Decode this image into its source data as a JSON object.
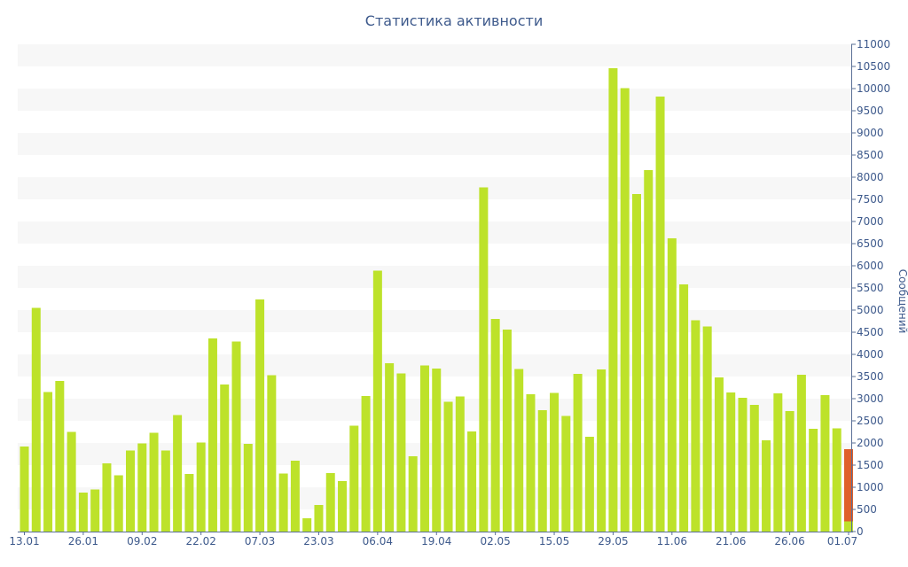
{
  "chart_data": {
    "type": "bar",
    "title": "Статистика активности",
    "xlabel": "",
    "ylabel": "Сообщений",
    "y_axis_position": "right",
    "ylim": [
      0,
      11000
    ],
    "y_ticks": [
      0,
      500,
      1000,
      1500,
      2000,
      2500,
      3000,
      3500,
      4000,
      4500,
      5000,
      5500,
      6000,
      6500,
      7000,
      7500,
      8000,
      8500,
      9000,
      9500,
      10000,
      10500,
      11000
    ],
    "x_tick_labels": [
      {
        "index": 0,
        "label": "13.01"
      },
      {
        "index": 5,
        "label": "26.01"
      },
      {
        "index": 10,
        "label": "09.02"
      },
      {
        "index": 15,
        "label": "22.02"
      },
      {
        "index": 20,
        "label": "07.03"
      },
      {
        "index": 25,
        "label": "23.03"
      },
      {
        "index": 30,
        "label": "06.04"
      },
      {
        "index": 35,
        "label": "19.04"
      },
      {
        "index": 40,
        "label": "02.05"
      },
      {
        "index": 45,
        "label": "15.05"
      },
      {
        "index": 50,
        "label": "29.05"
      },
      {
        "index": 55,
        "label": "11.06"
      },
      {
        "index": 60,
        "label": "21.06"
      },
      {
        "index": 65,
        "label": "26.06"
      },
      {
        "index": 70,
        "label": "01.07"
      }
    ],
    "grid": "horizontal bands",
    "colors": {
      "bar": "#bde22a",
      "highlight": "#e0602a",
      "text": "#3e5a8c",
      "band": "#f7f7f7"
    },
    "values": [
      1920,
      5050,
      3150,
      3400,
      2250,
      880,
      950,
      1540,
      1270,
      1830,
      1990,
      2230,
      1830,
      2630,
      1300,
      2010,
      4360,
      3320,
      4290,
      1980,
      5240,
      3530,
      1310,
      1600,
      300,
      600,
      1320,
      1140,
      2390,
      3060,
      5890,
      3800,
      3570,
      1700,
      3750,
      3680,
      2930,
      3050,
      2260,
      7770,
      4800,
      4560,
      3670,
      3100,
      2740,
      3130,
      2610,
      3560,
      2140,
      3660,
      10460,
      10010,
      7620,
      8160,
      9820,
      6620,
      5580,
      4770,
      4630,
      3480,
      3140,
      3020,
      2860,
      2060,
      3120,
      2720,
      3540,
      2320,
      3080,
      2330,
      1860
    ],
    "highlight": {
      "index": 70,
      "low": 230,
      "high": 1860
    }
  }
}
